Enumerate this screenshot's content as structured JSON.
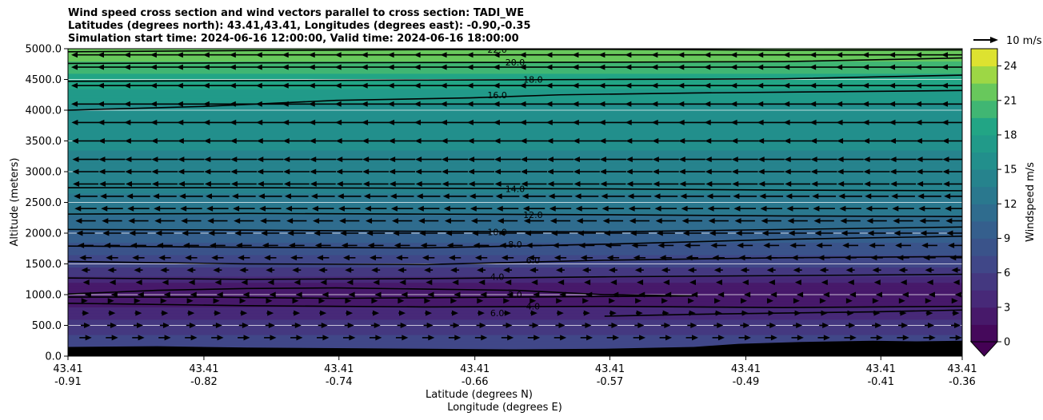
{
  "chart_data": {
    "type": "heatmap",
    "title_lines": [
      "Wind speed cross section and wind vectors parallel to cross section: TADI_WE",
      "Latitudes (degrees north): 43.41,43.41, Longitudes (degrees east): -0.90,-0.35",
      "Simulation start time: 2024-06-16 12:00:00, Valid time: 2024-06-16 18:00:00"
    ],
    "xlabel_line1": "Latitude (degrees N)",
    "xlabel_line2": "Longitude (degrees E)",
    "ylabel": "Altitude (meters)",
    "ylim": [
      0,
      5000
    ],
    "y_ticks": [
      "0.0",
      "500.0",
      "1000.0",
      "1500.0",
      "2000.0",
      "2500.0",
      "3000.0",
      "3500.0",
      "4000.0",
      "4500.0",
      "5000.0"
    ],
    "x_ticks": [
      {
        "lat": "43.41",
        "lon": "-0.91"
      },
      {
        "lat": "43.41",
        "lon": "-0.82"
      },
      {
        "lat": "43.41",
        "lon": "-0.74"
      },
      {
        "lat": "43.41",
        "lon": "-0.66"
      },
      {
        "lat": "43.41",
        "lon": "-0.57"
      },
      {
        "lat": "43.41",
        "lon": "-0.49"
      },
      {
        "lat": "43.41",
        "lon": "-0.41"
      },
      {
        "lat": "43.41",
        "lon": "-0.36"
      }
    ],
    "x_tick_frac": [
      0,
      0.152,
      0.303,
      0.455,
      0.606,
      0.758,
      0.909,
      1.0
    ],
    "colorbar": {
      "label": "Windspeed m/s",
      "min": 0,
      "max": 25.5,
      "step": 1.5,
      "extend": "min",
      "ticks": [
        "0",
        "3",
        "6",
        "9",
        "12",
        "15",
        "18",
        "21",
        "24"
      ]
    },
    "quiver_key": "10 m/s",
    "terrain_m": [
      [
        0,
        150
      ],
      [
        0.1,
        160
      ],
      [
        0.2,
        140
      ],
      [
        0.3,
        130
      ],
      [
        0.4,
        120
      ],
      [
        0.5,
        110
      ],
      [
        0.6,
        120
      ],
      [
        0.7,
        150
      ],
      [
        0.75,
        200
      ],
      [
        0.82,
        230
      ],
      [
        0.9,
        250
      ],
      [
        0.95,
        240
      ],
      [
        1.0,
        250
      ]
    ],
    "speed_profile": [
      [
        0,
        6.5
      ],
      [
        200,
        7
      ],
      [
        500,
        5
      ],
      [
        800,
        3
      ],
      [
        1000,
        1.5
      ],
      [
        1150,
        2.5
      ],
      [
        1300,
        4.5
      ],
      [
        1500,
        6.5
      ],
      [
        1700,
        8
      ],
      [
        2000,
        10
      ],
      [
        2200,
        11.5
      ],
      [
        2500,
        13
      ],
      [
        3000,
        14.5
      ],
      [
        3500,
        15.2
      ],
      [
        4000,
        16
      ],
      [
        4300,
        17.5
      ],
      [
        4600,
        19.5
      ],
      [
        4800,
        21
      ],
      [
        5000,
        22.5
      ]
    ],
    "isotachs": [
      {
        "label": "22.0",
        "points": [
          [
            0,
            4950
          ],
          [
            0.2,
            4970
          ],
          [
            0.4,
            4985
          ],
          [
            0.6,
            4990
          ],
          [
            0.8,
            4975
          ],
          [
            1.0,
            4980
          ]
        ]
      },
      {
        "label": "20.0",
        "points": [
          [
            0,
            4760
          ],
          [
            0.2,
            4770
          ],
          [
            0.4,
            4775
          ],
          [
            0.6,
            4780
          ],
          [
            0.8,
            4790
          ],
          [
            1.0,
            4850
          ]
        ]
      },
      {
        "label": "18.0",
        "points": [
          [
            0,
            4470
          ],
          [
            0.2,
            4480
          ],
          [
            0.4,
            4490
          ],
          [
            0.6,
            4500
          ],
          [
            0.8,
            4510
          ],
          [
            1.0,
            4570
          ]
        ]
      },
      {
        "label": "16.0",
        "points": [
          [
            0,
            4000
          ],
          [
            0.15,
            4060
          ],
          [
            0.3,
            4160
          ],
          [
            0.45,
            4200
          ],
          [
            0.55,
            4250
          ],
          [
            0.7,
            4280
          ],
          [
            0.85,
            4300
          ],
          [
            1.0,
            4320
          ]
        ]
      },
      {
        "label": "14.0",
        "points": [
          [
            0,
            2740
          ],
          [
            0.2,
            2740
          ],
          [
            0.4,
            2730
          ],
          [
            0.6,
            2720
          ],
          [
            0.8,
            2700
          ],
          [
            1.0,
            2690
          ]
        ]
      },
      {
        "label": "12.0",
        "points": [
          [
            0,
            2310
          ],
          [
            0.2,
            2320
          ],
          [
            0.4,
            2310
          ],
          [
            0.6,
            2300
          ],
          [
            0.8,
            2280
          ],
          [
            1.0,
            2270
          ]
        ]
      },
      {
        "label": "10.0",
        "points": [
          [
            0,
            2060
          ],
          [
            0.2,
            2050
          ],
          [
            0.4,
            2030
          ],
          [
            0.6,
            2020
          ],
          [
            0.8,
            2060
          ],
          [
            1.0,
            2100
          ]
        ]
      },
      {
        "label": "8.0",
        "points": [
          [
            0,
            1790
          ],
          [
            0.2,
            1770
          ],
          [
            0.4,
            1760
          ],
          [
            0.6,
            1820
          ],
          [
            0.8,
            1900
          ],
          [
            1.0,
            1950
          ]
        ]
      },
      {
        "label": "6.0",
        "points": [
          [
            0,
            1540
          ],
          [
            0.2,
            1500
          ],
          [
            0.4,
            1490
          ],
          [
            0.6,
            1560
          ],
          [
            0.8,
            1600
          ],
          [
            1.0,
            1620
          ]
        ]
      },
      {
        "label": "4.0",
        "points": [
          [
            0,
            1270
          ],
          [
            0.2,
            1250
          ],
          [
            0.4,
            1260
          ],
          [
            0.6,
            1290
          ],
          [
            0.8,
            1310
          ],
          [
            1.0,
            1330
          ]
        ]
      },
      {
        "label": "2.0",
        "points": [
          [
            0,
            1010
          ],
          [
            0.1,
            1070
          ],
          [
            0.2,
            1100
          ],
          [
            0.3,
            1110
          ],
          [
            0.4,
            1090
          ],
          [
            0.5,
            1070
          ],
          [
            0.6,
            1000
          ],
          [
            0.7,
            980
          ],
          [
            0.5,
            960
          ],
          [
            0.3,
            940
          ],
          [
            0.15,
            960
          ],
          [
            0,
            960
          ]
        ]
      },
      {
        "label": "4.0",
        "points": [
          [
            0,
            860
          ],
          [
            0.2,
            820
          ],
          [
            0.4,
            800
          ],
          [
            0.6,
            810
          ],
          [
            0.8,
            790
          ],
          [
            1.0,
            810
          ]
        ]
      },
      {
        "label": "6.0",
        "points": [
          [
            0.6,
            650
          ],
          [
            0.7,
            680
          ],
          [
            0.8,
            700
          ],
          [
            0.9,
            720
          ],
          [
            1.0,
            750
          ]
        ]
      }
    ],
    "wind_profile": [
      [
        100,
        6
      ],
      [
        300,
        7
      ],
      [
        500,
        5.5
      ],
      [
        700,
        4
      ],
      [
        900,
        2.5
      ],
      [
        1000,
        -1
      ],
      [
        1200,
        -3
      ],
      [
        1400,
        -5
      ],
      [
        1600,
        -7
      ],
      [
        1800,
        -9
      ],
      [
        2000,
        -10.5
      ],
      [
        2200,
        -11.5
      ],
      [
        2400,
        -12.5
      ],
      [
        2600,
        -13.5
      ],
      [
        2800,
        -14.5
      ],
      [
        3000,
        -15
      ],
      [
        3200,
        -15
      ],
      [
        3500,
        -15.5
      ],
      [
        3800,
        -16
      ],
      [
        4100,
        -16.5
      ],
      [
        4400,
        -18
      ],
      [
        4700,
        -20
      ],
      [
        4900,
        -21.5
      ]
    ]
  }
}
